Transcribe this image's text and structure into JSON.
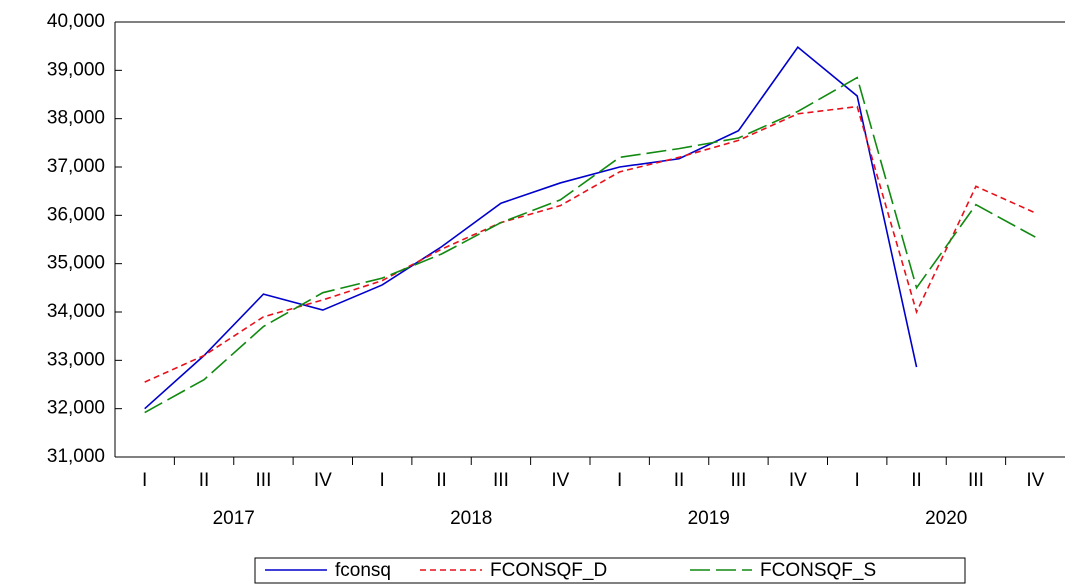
{
  "chart_data": {
    "type": "line",
    "categories": [
      "I",
      "II",
      "III",
      "IV",
      "I",
      "II",
      "III",
      "IV",
      "I",
      "II",
      "III",
      "IV",
      "I",
      "II",
      "III",
      "IV"
    ],
    "years": [
      "2017",
      "2018",
      "2019",
      "2020"
    ],
    "series": [
      {
        "name": "fconsq",
        "color": "#0000cc",
        "dash": "none",
        "values": [
          32000,
          33100,
          34370,
          34040,
          34560,
          35350,
          36250,
          36670,
          37000,
          37170,
          37750,
          39480,
          38470,
          32860,
          null,
          null
        ]
      },
      {
        "name": "FCONSQF_D",
        "color": "#e8111b",
        "dash": "6,4",
        "values": [
          32550,
          33100,
          33900,
          34250,
          34650,
          35300,
          35850,
          36200,
          36900,
          37200,
          37550,
          38100,
          38250,
          34000,
          36600,
          36050
        ]
      },
      {
        "name": "FCONSQF_S",
        "color": "#108a10",
        "dash": "20,6",
        "values": [
          31920,
          32600,
          33700,
          34400,
          34700,
          35200,
          35850,
          36320,
          37200,
          37380,
          37600,
          38150,
          38850,
          34500,
          36220,
          35550
        ]
      }
    ],
    "ylim": [
      31000,
      40000
    ],
    "yticks": [
      {
        "value": 31000,
        "label": "31,000"
      },
      {
        "value": 32000,
        "label": "32,000"
      },
      {
        "value": 33000,
        "label": "33,000"
      },
      {
        "value": 34000,
        "label": "34,000"
      },
      {
        "value": 35000,
        "label": "35,000"
      },
      {
        "value": 36000,
        "label": "36,000"
      },
      {
        "value": 37000,
        "label": "37,000"
      },
      {
        "value": 38000,
        "label": "38,000"
      },
      {
        "value": 39000,
        "label": "39,000"
      },
      {
        "value": 40000,
        "label": "40,000"
      }
    ],
    "grid": false,
    "legend": "bottom"
  }
}
